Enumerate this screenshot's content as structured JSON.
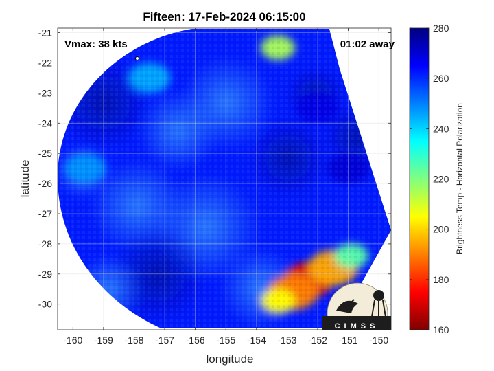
{
  "title": "Fifteen: 17-Feb-2024 06:15:00",
  "annotations": {
    "vmax": "Vmax: 38 kts",
    "time_away": "01:02 away"
  },
  "axes": {
    "xlabel": "longitude",
    "ylabel": "latitude",
    "xlim": [
      -160.5,
      -149.6
    ],
    "ylim": [
      -30.85,
      -20.85
    ],
    "xticks": [
      -160,
      -159,
      -158,
      -157,
      -156,
      -155,
      -154,
      -153,
      -152,
      -151,
      -150
    ],
    "yticks": [
      -21,
      -22,
      -23,
      -24,
      -25,
      -26,
      -27,
      -28,
      -29,
      -30
    ],
    "grid": true
  },
  "colorbar": {
    "label": "Brightness Temp - Horizontal Polarization",
    "range": [
      160,
      280
    ],
    "ticks": [
      280,
      260,
      240,
      220,
      200,
      180,
      160
    ],
    "colormap": "jet",
    "colors": [
      "#800000",
      "#ff0000",
      "#ff8000",
      "#ffff00",
      "#80ff80",
      "#00ffff",
      "#0080ff",
      "#0000ff",
      "#000080"
    ]
  },
  "logo": {
    "text": "CIMSS"
  },
  "swath": {
    "background_temp": 262,
    "features": [
      {
        "lon": -152.3,
        "lat": -29.2,
        "temp": 172
      },
      {
        "lon": -152.8,
        "lat": -29.6,
        "temp": 190
      },
      {
        "lon": -151.5,
        "lat": -28.8,
        "temp": 195
      },
      {
        "lon": -153.3,
        "lat": -29.9,
        "temp": 205
      },
      {
        "lon": -150.9,
        "lat": -28.4,
        "temp": 225
      },
      {
        "lon": -153.3,
        "lat": -21.5,
        "temp": 215
      },
      {
        "lon": -157.5,
        "lat": -22.5,
        "temp": 245
      },
      {
        "lon": -159.6,
        "lat": -25.5,
        "temp": 248
      },
      {
        "lon": -152.0,
        "lat": -23.5,
        "temp": 268
      },
      {
        "lon": -151.0,
        "lat": -25.5,
        "temp": 270
      }
    ]
  }
}
